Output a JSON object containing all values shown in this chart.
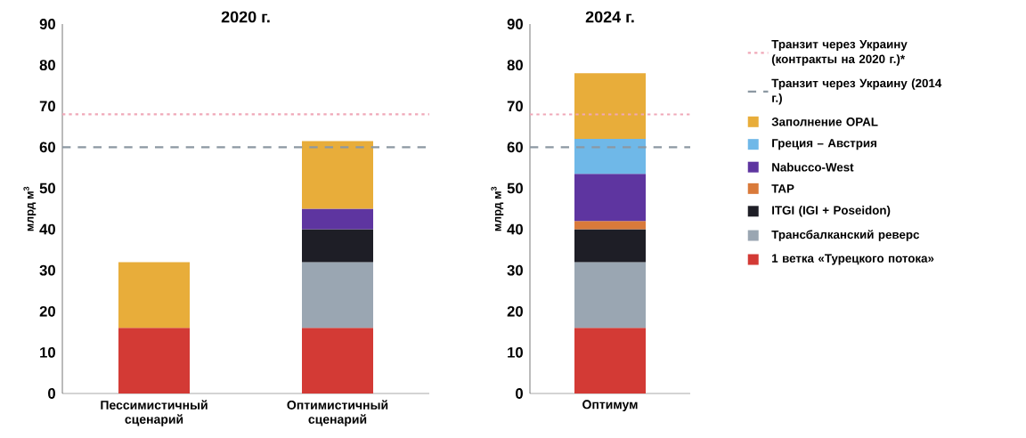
{
  "chart_data": [
    {
      "type": "bar",
      "title": "2020 г.",
      "ylabel": "млрд м$^{3}$",
      "categories": [
        "Пессимистичный сценарий",
        "Оптимистичный сценарий"
      ],
      "stacked": true,
      "ylim": [
        0,
        90
      ],
      "yticks": [
        0,
        10,
        20,
        30,
        40,
        50,
        60,
        70,
        80,
        90
      ],
      "series": [
        {
          "color": "#d33a35",
          "values": [
            16,
            16
          ]
        },
        {
          "color": "#9aa6b2",
          "values": [
            null,
            16
          ]
        },
        {
          "color": "#1e1e26",
          "values": [
            null,
            8
          ]
        },
        {
          "color": "#5e35a0",
          "values": [
            null,
            5
          ]
        },
        {
          "color": "#e8ad3a",
          "values": [
            16,
            16.5
          ]
        }
      ],
      "ref_lines": [
        {
          "axis": "y",
          "value": 68,
          "color": "#f0a8b8",
          "line_style": "dotted"
        },
        {
          "axis": "y",
          "value": 60,
          "color": "#8c98a2",
          "line_style": "dashed"
        }
      ]
    },
    {
      "type": "bar",
      "title": "2024 г.",
      "ylabel": "млрд м$^{3}$",
      "categories": [
        "Оптимум"
      ],
      "stacked": true,
      "ylim": [
        0,
        90
      ],
      "yticks": [
        0,
        10,
        20,
        30,
        40,
        50,
        60,
        70,
        80,
        90
      ],
      "legend": "right",
      "series": [
        {
          "name": "1 ветка «Турецкого потока»",
          "color": "#d33a35",
          "values": [
            16
          ]
        },
        {
          "name": "Трансбалканский реверс",
          "color": "#9aa6b2",
          "values": [
            16
          ]
        },
        {
          "name": "ITGI (IGI + Poseidon)",
          "color": "#1e1e26",
          "values": [
            8
          ]
        },
        {
          "name": "TAP",
          "color": "#d97a3a",
          "values": [
            2
          ]
        },
        {
          "name": "Nabucco-West",
          "color": "#5e35a0",
          "values": [
            11.5
          ]
        },
        {
          "name": "Греция – Австрия",
          "color": "#6fb8e8",
          "values": [
            8.5
          ]
        },
        {
          "name": "Заполнение OPAL",
          "color": "#e8ad3a",
          "values": [
            16
          ]
        }
      ],
      "ref_lines": [
        {
          "axis": "y",
          "value": 68,
          "color": "#f0a8b8",
          "line_style": "dotted",
          "label": "Транзит через Украину (контракты на 2020 г.)*"
        },
        {
          "axis": "y",
          "value": 60,
          "color": "#8c98a2",
          "line_style": "dashed",
          "label": "Транзит через Украину (2014 г.)"
        }
      ]
    }
  ]
}
